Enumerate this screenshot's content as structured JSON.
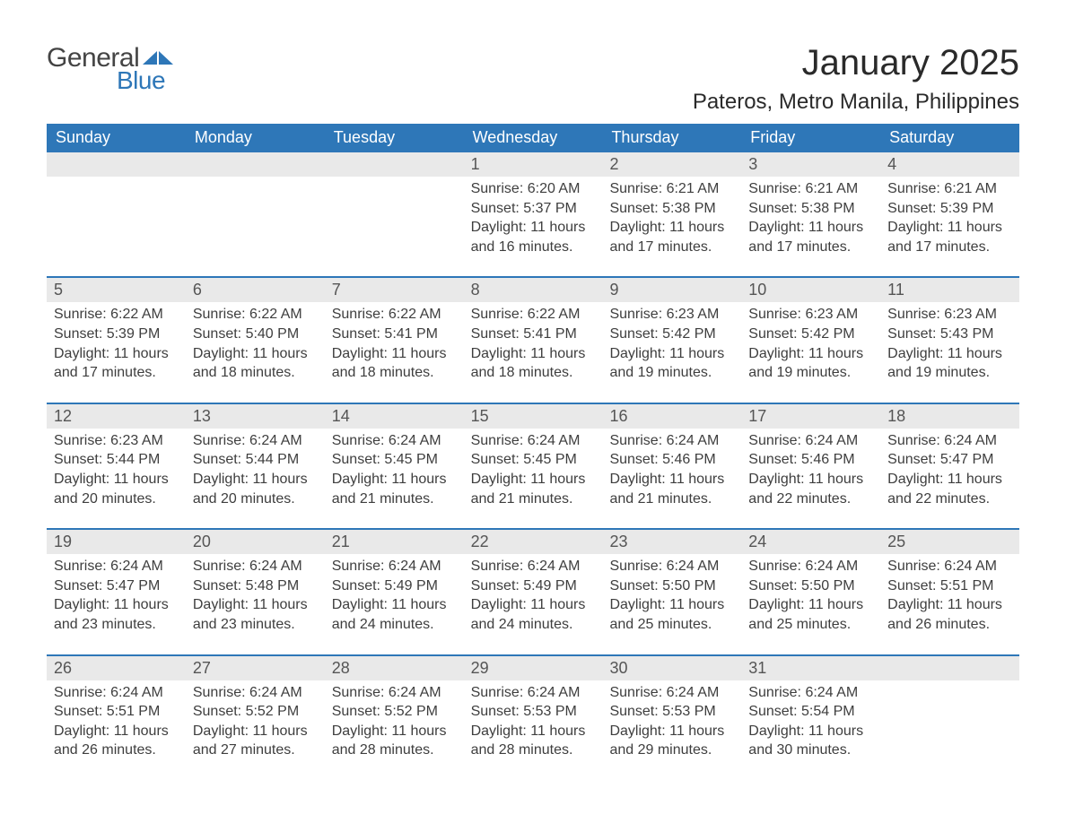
{
  "logo": {
    "text_general": "General",
    "text_blue": "Blue",
    "shape_color": "#2e77b8"
  },
  "title": "January 2025",
  "location": "Pateros, Metro Manila, Philippines",
  "colors": {
    "header_bg": "#2e77b8",
    "header_text": "#ffffff",
    "daynum_bg": "#e9e9e9",
    "week_divider": "#2e77b8",
    "body_text": "#3e3e3e",
    "title_text": "#2a2a2a"
  },
  "typography": {
    "title_fontsize": 40,
    "location_fontsize": 24,
    "weekday_fontsize": 18,
    "daynum_fontsize": 18,
    "body_fontsize": 16,
    "font_family": "Arial"
  },
  "weekdays": [
    "Sunday",
    "Monday",
    "Tuesday",
    "Wednesday",
    "Thursday",
    "Friday",
    "Saturday"
  ],
  "labels": {
    "sunrise": "Sunrise",
    "sunset": "Sunset",
    "daylight": "Daylight"
  },
  "weeks": [
    [
      null,
      null,
      null,
      {
        "day": "1",
        "sunrise": "6:20 AM",
        "sunset": "5:37 PM",
        "daylight_h": "11",
        "daylight_m": "16"
      },
      {
        "day": "2",
        "sunrise": "6:21 AM",
        "sunset": "5:38 PM",
        "daylight_h": "11",
        "daylight_m": "17"
      },
      {
        "day": "3",
        "sunrise": "6:21 AM",
        "sunset": "5:38 PM",
        "daylight_h": "11",
        "daylight_m": "17"
      },
      {
        "day": "4",
        "sunrise": "6:21 AM",
        "sunset": "5:39 PM",
        "daylight_h": "11",
        "daylight_m": "17"
      }
    ],
    [
      {
        "day": "5",
        "sunrise": "6:22 AM",
        "sunset": "5:39 PM",
        "daylight_h": "11",
        "daylight_m": "17"
      },
      {
        "day": "6",
        "sunrise": "6:22 AM",
        "sunset": "5:40 PM",
        "daylight_h": "11",
        "daylight_m": "18"
      },
      {
        "day": "7",
        "sunrise": "6:22 AM",
        "sunset": "5:41 PM",
        "daylight_h": "11",
        "daylight_m": "18"
      },
      {
        "day": "8",
        "sunrise": "6:22 AM",
        "sunset": "5:41 PM",
        "daylight_h": "11",
        "daylight_m": "18"
      },
      {
        "day": "9",
        "sunrise": "6:23 AM",
        "sunset": "5:42 PM",
        "daylight_h": "11",
        "daylight_m": "19"
      },
      {
        "day": "10",
        "sunrise": "6:23 AM",
        "sunset": "5:42 PM",
        "daylight_h": "11",
        "daylight_m": "19"
      },
      {
        "day": "11",
        "sunrise": "6:23 AM",
        "sunset": "5:43 PM",
        "daylight_h": "11",
        "daylight_m": "19"
      }
    ],
    [
      {
        "day": "12",
        "sunrise": "6:23 AM",
        "sunset": "5:44 PM",
        "daylight_h": "11",
        "daylight_m": "20"
      },
      {
        "day": "13",
        "sunrise": "6:24 AM",
        "sunset": "5:44 PM",
        "daylight_h": "11",
        "daylight_m": "20"
      },
      {
        "day": "14",
        "sunrise": "6:24 AM",
        "sunset": "5:45 PM",
        "daylight_h": "11",
        "daylight_m": "21"
      },
      {
        "day": "15",
        "sunrise": "6:24 AM",
        "sunset": "5:45 PM",
        "daylight_h": "11",
        "daylight_m": "21"
      },
      {
        "day": "16",
        "sunrise": "6:24 AM",
        "sunset": "5:46 PM",
        "daylight_h": "11",
        "daylight_m": "21"
      },
      {
        "day": "17",
        "sunrise": "6:24 AM",
        "sunset": "5:46 PM",
        "daylight_h": "11",
        "daylight_m": "22"
      },
      {
        "day": "18",
        "sunrise": "6:24 AM",
        "sunset": "5:47 PM",
        "daylight_h": "11",
        "daylight_m": "22"
      }
    ],
    [
      {
        "day": "19",
        "sunrise": "6:24 AM",
        "sunset": "5:47 PM",
        "daylight_h": "11",
        "daylight_m": "23"
      },
      {
        "day": "20",
        "sunrise": "6:24 AM",
        "sunset": "5:48 PM",
        "daylight_h": "11",
        "daylight_m": "23"
      },
      {
        "day": "21",
        "sunrise": "6:24 AM",
        "sunset": "5:49 PM",
        "daylight_h": "11",
        "daylight_m": "24"
      },
      {
        "day": "22",
        "sunrise": "6:24 AM",
        "sunset": "5:49 PM",
        "daylight_h": "11",
        "daylight_m": "24"
      },
      {
        "day": "23",
        "sunrise": "6:24 AM",
        "sunset": "5:50 PM",
        "daylight_h": "11",
        "daylight_m": "25"
      },
      {
        "day": "24",
        "sunrise": "6:24 AM",
        "sunset": "5:50 PM",
        "daylight_h": "11",
        "daylight_m": "25"
      },
      {
        "day": "25",
        "sunrise": "6:24 AM",
        "sunset": "5:51 PM",
        "daylight_h": "11",
        "daylight_m": "26"
      }
    ],
    [
      {
        "day": "26",
        "sunrise": "6:24 AM",
        "sunset": "5:51 PM",
        "daylight_h": "11",
        "daylight_m": "26"
      },
      {
        "day": "27",
        "sunrise": "6:24 AM",
        "sunset": "5:52 PM",
        "daylight_h": "11",
        "daylight_m": "27"
      },
      {
        "day": "28",
        "sunrise": "6:24 AM",
        "sunset": "5:52 PM",
        "daylight_h": "11",
        "daylight_m": "28"
      },
      {
        "day": "29",
        "sunrise": "6:24 AM",
        "sunset": "5:53 PM",
        "daylight_h": "11",
        "daylight_m": "28"
      },
      {
        "day": "30",
        "sunrise": "6:24 AM",
        "sunset": "5:53 PM",
        "daylight_h": "11",
        "daylight_m": "29"
      },
      {
        "day": "31",
        "sunrise": "6:24 AM",
        "sunset": "5:54 PM",
        "daylight_h": "11",
        "daylight_m": "30"
      },
      null
    ]
  ]
}
